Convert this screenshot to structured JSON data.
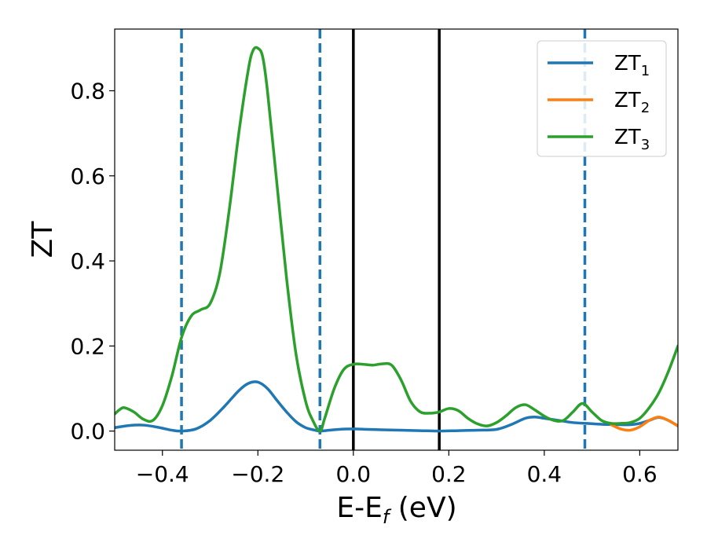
{
  "chart_data": {
    "type": "line",
    "xlabel_main": "E-E",
    "xlabel_sub": "f",
    "xlabel_unit": " (eV)",
    "ylabel": "ZT",
    "xlim": [
      -0.5,
      0.68
    ],
    "ylim": [
      -0.045,
      0.945
    ],
    "xticks": [
      -0.4,
      -0.2,
      0.0,
      0.2,
      0.4,
      0.6
    ],
    "xtick_labels": [
      "−0.4",
      "−0.2",
      "0.0",
      "0.2",
      "0.4",
      "0.6"
    ],
    "yticks": [
      0.0,
      0.2,
      0.4,
      0.6,
      0.8
    ],
    "ytick_labels": [
      "0.0",
      "0.2",
      "0.4",
      "0.6",
      "0.8"
    ],
    "grid": false,
    "legend_position": "top-right",
    "vlines_dashed": [
      -0.36,
      -0.07,
      0.485
    ],
    "vlines_solid": [
      0.0,
      0.18
    ],
    "vline_dashed_color": "#1f77b4",
    "vline_solid_color": "#000000",
    "series": [
      {
        "name_main": "ZT",
        "name_sub": "1",
        "color": "#1f77b4",
        "x": [
          -0.5,
          -0.47,
          -0.44,
          -0.41,
          -0.38,
          -0.36,
          -0.33,
          -0.3,
          -0.27,
          -0.24,
          -0.22,
          -0.2,
          -0.18,
          -0.16,
          -0.14,
          -0.12,
          -0.1,
          -0.08,
          -0.07,
          -0.05,
          -0.03,
          0.0,
          0.03,
          0.06,
          0.1,
          0.14,
          0.18,
          0.22,
          0.26,
          0.3,
          0.33,
          0.36,
          0.38,
          0.4,
          0.43,
          0.46,
          0.49,
          0.52,
          0.56,
          0.58,
          0.6,
          0.62,
          0.64,
          0.66,
          0.68
        ],
        "y": [
          0.008,
          0.013,
          0.014,
          0.009,
          0.002,
          0.0,
          0.005,
          0.025,
          0.058,
          0.095,
          0.112,
          0.115,
          0.1,
          0.072,
          0.045,
          0.022,
          0.008,
          0.002,
          0.0,
          0.002,
          0.004,
          0.005,
          0.004,
          0.003,
          0.002,
          0.001,
          0.0,
          0.001,
          0.002,
          0.004,
          0.015,
          0.03,
          0.033,
          0.03,
          0.025,
          0.02,
          0.018,
          0.016,
          0.015,
          0.015,
          0.018,
          0.025,
          0.032,
          0.025,
          0.012
        ]
      },
      {
        "name_main": "ZT",
        "name_sub": "2",
        "color": "#ff7f0e",
        "x": [
          0.54,
          0.56,
          0.58,
          0.6,
          0.62,
          0.64,
          0.66,
          0.68
        ],
        "y": [
          0.015,
          0.005,
          0.002,
          0.01,
          0.025,
          0.033,
          0.025,
          0.012
        ]
      },
      {
        "name_main": "ZT",
        "name_sub": "3",
        "color": "#2ca02c",
        "x": [
          -0.5,
          -0.49,
          -0.48,
          -0.46,
          -0.44,
          -0.42,
          -0.4,
          -0.38,
          -0.36,
          -0.34,
          -0.32,
          -0.3,
          -0.28,
          -0.26,
          -0.24,
          -0.22,
          -0.21,
          -0.2,
          -0.19,
          -0.18,
          -0.16,
          -0.14,
          -0.12,
          -0.1,
          -0.085,
          -0.07,
          -0.06,
          -0.04,
          -0.02,
          0.0,
          0.02,
          0.04,
          0.06,
          0.08,
          0.1,
          0.12,
          0.14,
          0.16,
          0.18,
          0.2,
          0.22,
          0.24,
          0.26,
          0.28,
          0.3,
          0.32,
          0.34,
          0.36,
          0.38,
          0.4,
          0.42,
          0.44,
          0.46,
          0.48,
          0.5,
          0.52,
          0.54,
          0.56,
          0.58,
          0.6,
          0.62,
          0.64,
          0.66,
          0.68
        ],
        "y": [
          0.04,
          0.05,
          0.055,
          0.045,
          0.028,
          0.025,
          0.06,
          0.13,
          0.22,
          0.27,
          0.285,
          0.3,
          0.37,
          0.52,
          0.7,
          0.85,
          0.895,
          0.9,
          0.88,
          0.8,
          0.58,
          0.36,
          0.18,
          0.07,
          0.025,
          0.0,
          0.03,
          0.1,
          0.145,
          0.157,
          0.157,
          0.155,
          0.158,
          0.155,
          0.12,
          0.07,
          0.045,
          0.042,
          0.045,
          0.053,
          0.048,
          0.03,
          0.017,
          0.012,
          0.02,
          0.036,
          0.055,
          0.062,
          0.05,
          0.035,
          0.025,
          0.025,
          0.045,
          0.065,
          0.045,
          0.025,
          0.018,
          0.018,
          0.02,
          0.03,
          0.055,
          0.09,
          0.14,
          0.2
        ]
      }
    ]
  }
}
